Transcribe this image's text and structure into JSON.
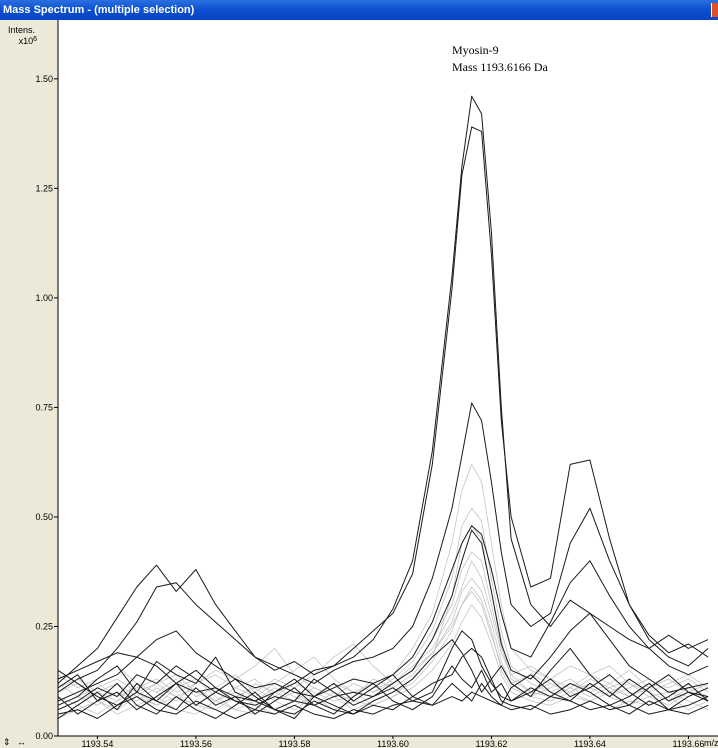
{
  "window": {
    "title": "Mass Spectrum - (multiple selection)"
  },
  "icons": {
    "close": "close-icon",
    "nav": "axis-nav-arrows-icon"
  },
  "nav_glyph": "⇕ ↔",
  "colors": {
    "titlebar": "#0a4fd0",
    "frame": "#ece9d8",
    "dark_trace": "#1a1a1a",
    "light_trace": "#c4c4c4"
  },
  "chart_data": {
    "type": "line",
    "annotation": {
      "line1": "Myosin-9",
      "line2": "Mass 1193.6166 Da"
    },
    "ylabel": "Intens.",
    "yscale_label": "x10",
    "yscale_exp": "6",
    "xunit": "m/z",
    "xlim": [
      1193.532,
      1193.666
    ],
    "ylim": [
      0,
      1.6
    ],
    "x_ticks": [
      "1193.54",
      "1193.56",
      "1193.58",
      "1193.60",
      "1193.62",
      "1193.64",
      "1193.66"
    ],
    "y_ticks": [
      "0.00",
      "0.25",
      "0.50",
      "0.75",
      "1.00",
      "1.25",
      "1.50"
    ],
    "x": [
      1193.532,
      1193.536,
      1193.54,
      1193.544,
      1193.548,
      1193.552,
      1193.556,
      1193.56,
      1193.564,
      1193.568,
      1193.572,
      1193.576,
      1193.58,
      1193.584,
      1193.588,
      1193.592,
      1193.596,
      1193.6,
      1193.604,
      1193.608,
      1193.612,
      1193.614,
      1193.616,
      1193.618,
      1193.62,
      1193.622,
      1193.624,
      1193.628,
      1193.632,
      1193.636,
      1193.64,
      1193.644,
      1193.648,
      1193.652,
      1193.656,
      1193.66,
      1193.664
    ],
    "series": [
      {
        "style": "dark",
        "values": [
          0.13,
          0.15,
          0.17,
          0.19,
          0.18,
          0.16,
          0.12,
          0.1,
          0.11,
          0.09,
          0.08,
          0.1,
          0.12,
          0.15,
          0.16,
          0.18,
          0.22,
          0.29,
          0.4,
          0.65,
          1.05,
          1.3,
          1.46,
          1.42,
          1.15,
          0.75,
          0.45,
          0.3,
          0.25,
          0.31,
          0.28,
          0.25,
          0.22,
          0.2,
          0.23,
          0.2,
          0.22
        ]
      },
      {
        "style": "dark",
        "values": [
          0.12,
          0.16,
          0.2,
          0.27,
          0.34,
          0.39,
          0.33,
          0.38,
          0.3,
          0.24,
          0.18,
          0.15,
          0.17,
          0.14,
          0.16,
          0.2,
          0.24,
          0.28,
          0.37,
          0.62,
          1.02,
          1.28,
          1.39,
          1.38,
          1.1,
          0.72,
          0.5,
          0.34,
          0.36,
          0.62,
          0.63,
          0.45,
          0.3,
          0.22,
          0.18,
          0.16,
          0.2
        ]
      },
      {
        "style": "dark",
        "values": [
          0.1,
          0.13,
          0.15,
          0.2,
          0.26,
          0.34,
          0.35,
          0.3,
          0.26,
          0.22,
          0.18,
          0.16,
          0.14,
          0.12,
          0.15,
          0.17,
          0.18,
          0.2,
          0.25,
          0.36,
          0.52,
          0.64,
          0.76,
          0.72,
          0.58,
          0.42,
          0.3,
          0.25,
          0.28,
          0.44,
          0.52,
          0.4,
          0.3,
          0.23,
          0.19,
          0.21,
          0.18
        ]
      },
      {
        "style": "dark",
        "values": [
          0.08,
          0.1,
          0.12,
          0.14,
          0.18,
          0.22,
          0.24,
          0.19,
          0.16,
          0.13,
          0.11,
          0.12,
          0.1,
          0.09,
          0.11,
          0.13,
          0.12,
          0.14,
          0.18,
          0.26,
          0.38,
          0.44,
          0.48,
          0.46,
          0.38,
          0.28,
          0.2,
          0.18,
          0.26,
          0.35,
          0.4,
          0.32,
          0.25,
          0.2,
          0.16,
          0.14,
          0.16
        ]
      },
      {
        "style": "dark",
        "values": [
          0.06,
          0.08,
          0.11,
          0.09,
          0.14,
          0.12,
          0.16,
          0.13,
          0.1,
          0.08,
          0.07,
          0.09,
          0.08,
          0.07,
          0.09,
          0.1,
          0.09,
          0.12,
          0.15,
          0.22,
          0.32,
          0.4,
          0.47,
          0.44,
          0.33,
          0.21,
          0.15,
          0.13,
          0.18,
          0.24,
          0.28,
          0.22,
          0.16,
          0.13,
          0.1,
          0.11,
          0.12
        ]
      },
      {
        "style": "dark",
        "values": [
          0.15,
          0.12,
          0.09,
          0.07,
          0.1,
          0.17,
          0.14,
          0.12,
          0.18,
          0.1,
          0.08,
          0.06,
          0.08,
          0.13,
          0.1,
          0.07,
          0.09,
          0.11,
          0.08,
          0.1,
          0.2,
          0.24,
          0.22,
          0.16,
          0.12,
          0.09,
          0.08,
          0.11,
          0.09,
          0.12,
          0.1,
          0.07,
          0.09,
          0.12,
          0.08,
          0.1,
          0.09
        ]
      },
      {
        "style": "dark",
        "values": [
          0.09,
          0.05,
          0.08,
          0.12,
          0.07,
          0.05,
          0.09,
          0.06,
          0.04,
          0.07,
          0.1,
          0.06,
          0.05,
          0.08,
          0.06,
          0.05,
          0.07,
          0.06,
          0.09,
          0.12,
          0.14,
          0.18,
          0.2,
          0.18,
          0.13,
          0.08,
          0.07,
          0.06,
          0.09,
          0.08,
          0.06,
          0.07,
          0.05,
          0.08,
          0.06,
          0.07,
          0.09
        ]
      },
      {
        "style": "dark",
        "values": [
          0.04,
          0.07,
          0.1,
          0.06,
          0.12,
          0.08,
          0.06,
          0.11,
          0.07,
          0.09,
          0.05,
          0.08,
          0.11,
          0.07,
          0.05,
          0.09,
          0.12,
          0.08,
          0.06,
          0.09,
          0.16,
          0.13,
          0.11,
          0.15,
          0.1,
          0.12,
          0.08,
          0.1,
          0.13,
          0.09,
          0.11,
          0.14,
          0.1,
          0.07,
          0.09,
          0.12,
          0.08
        ]
      },
      {
        "style": "dark",
        "values": [
          0.11,
          0.14,
          0.08,
          0.1,
          0.06,
          0.09,
          0.12,
          0.07,
          0.1,
          0.13,
          0.09,
          0.06,
          0.04,
          0.09,
          0.12,
          0.08,
          0.11,
          0.14,
          0.09,
          0.07,
          0.12,
          0.1,
          0.08,
          0.12,
          0.09,
          0.07,
          0.11,
          0.14,
          0.1,
          0.08,
          0.12,
          0.09,
          0.13,
          0.1,
          0.06,
          0.09,
          0.11
        ]
      },
      {
        "style": "dark",
        "values": [
          0.07,
          0.09,
          0.13,
          0.16,
          0.1,
          0.08,
          0.12,
          0.15,
          0.11,
          0.08,
          0.06,
          0.1,
          0.13,
          0.09,
          0.07,
          0.05,
          0.08,
          0.1,
          0.13,
          0.18,
          0.22,
          0.19,
          0.15,
          0.1,
          0.13,
          0.16,
          0.12,
          0.09,
          0.15,
          0.2,
          0.14,
          0.1,
          0.07,
          0.11,
          0.14,
          0.1,
          0.08
        ]
      },
      {
        "style": "dark",
        "values": [
          0.05,
          0.06,
          0.04,
          0.07,
          0.09,
          0.06,
          0.05,
          0.08,
          0.06,
          0.04,
          0.06,
          0.05,
          0.07,
          0.05,
          0.04,
          0.06,
          0.05,
          0.07,
          0.08,
          0.07,
          0.09,
          0.08,
          0.1,
          0.09,
          0.08,
          0.07,
          0.06,
          0.07,
          0.05,
          0.06,
          0.08,
          0.06,
          0.07,
          0.05,
          0.06,
          0.05,
          0.07
        ]
      },
      {
        "style": "light",
        "values": [
          0.08,
          0.1,
          0.12,
          0.09,
          0.11,
          0.13,
          0.1,
          0.12,
          0.14,
          0.11,
          0.09,
          0.12,
          0.15,
          0.18,
          0.13,
          0.1,
          0.12,
          0.14,
          0.2,
          0.28,
          0.44,
          0.56,
          0.62,
          0.58,
          0.44,
          0.3,
          0.2,
          0.15,
          0.13,
          0.16,
          0.14,
          0.12,
          0.15,
          0.11,
          0.13,
          0.1,
          0.12
        ]
      },
      {
        "style": "light",
        "values": [
          0.12,
          0.09,
          0.07,
          0.1,
          0.08,
          0.11,
          0.09,
          0.07,
          0.1,
          0.08,
          0.12,
          0.1,
          0.08,
          0.11,
          0.09,
          0.12,
          0.1,
          0.13,
          0.17,
          0.24,
          0.36,
          0.48,
          0.52,
          0.49,
          0.36,
          0.24,
          0.16,
          0.12,
          0.1,
          0.12,
          0.11,
          0.09,
          0.11,
          0.13,
          0.1,
          0.09,
          0.11
        ]
      },
      {
        "style": "light",
        "values": [
          0.06,
          0.08,
          0.1,
          0.12,
          0.09,
          0.07,
          0.11,
          0.13,
          0.09,
          0.06,
          0.08,
          0.11,
          0.09,
          0.07,
          0.1,
          0.08,
          0.11,
          0.12,
          0.15,
          0.22,
          0.3,
          0.38,
          0.42,
          0.4,
          0.3,
          0.2,
          0.14,
          0.1,
          0.12,
          0.1,
          0.08,
          0.1,
          0.12,
          0.09,
          0.07,
          0.1,
          0.08
        ]
      },
      {
        "style": "light",
        "values": [
          0.1,
          0.12,
          0.08,
          0.06,
          0.09,
          0.12,
          0.14,
          0.1,
          0.08,
          0.11,
          0.13,
          0.09,
          0.12,
          0.1,
          0.08,
          0.09,
          0.13,
          0.11,
          0.14,
          0.19,
          0.26,
          0.33,
          0.36,
          0.33,
          0.26,
          0.17,
          0.12,
          0.09,
          0.11,
          0.13,
          0.1,
          0.12,
          0.09,
          0.11,
          0.13,
          0.1,
          0.09
        ]
      },
      {
        "style": "light",
        "values": [
          0.04,
          0.06,
          0.08,
          0.05,
          0.07,
          0.09,
          0.06,
          0.05,
          0.08,
          0.1,
          0.07,
          0.05,
          0.07,
          0.09,
          0.06,
          0.08,
          0.07,
          0.09,
          0.11,
          0.15,
          0.21,
          0.26,
          0.3,
          0.27,
          0.21,
          0.14,
          0.1,
          0.08,
          0.07,
          0.09,
          0.08,
          0.06,
          0.08,
          0.07,
          0.09,
          0.06,
          0.08
        ]
      },
      {
        "style": "light",
        "values": [
          0.14,
          0.11,
          0.13,
          0.16,
          0.12,
          0.1,
          0.08,
          0.12,
          0.15,
          0.13,
          0.16,
          0.2,
          0.14,
          0.11,
          0.09,
          0.12,
          0.1,
          0.12,
          0.16,
          0.2,
          0.28,
          0.34,
          0.4,
          0.36,
          0.28,
          0.19,
          0.14,
          0.16,
          0.13,
          0.11,
          0.14,
          0.16,
          0.12,
          0.1,
          0.12,
          0.14,
          0.11
        ]
      },
      {
        "style": "light",
        "values": [
          0.09,
          0.07,
          0.05,
          0.08,
          0.1,
          0.07,
          0.09,
          0.11,
          0.08,
          0.06,
          0.05,
          0.08,
          0.1,
          0.07,
          0.09,
          0.06,
          0.08,
          0.1,
          0.12,
          0.17,
          0.24,
          0.3,
          0.34,
          0.31,
          0.24,
          0.15,
          0.11,
          0.09,
          0.08,
          0.1,
          0.12,
          0.09,
          0.07,
          0.09,
          0.1,
          0.08,
          0.06
        ]
      },
      {
        "style": "light",
        "values": [
          0.07,
          0.09,
          0.11,
          0.13,
          0.1,
          0.12,
          0.09,
          0.07,
          0.06,
          0.09,
          0.11,
          0.08,
          0.06,
          0.09,
          0.12,
          0.1,
          0.07,
          0.09,
          0.13,
          0.18,
          0.32,
          0.44,
          0.48,
          0.45,
          0.33,
          0.22,
          0.13,
          0.1,
          0.09,
          0.11,
          0.09,
          0.11,
          0.13,
          0.1,
          0.08,
          0.11,
          0.09
        ]
      },
      {
        "style": "light",
        "values": [
          0.11,
          0.13,
          0.1,
          0.08,
          0.12,
          0.1,
          0.13,
          0.09,
          0.11,
          0.14,
          0.1,
          0.13,
          0.11,
          0.14,
          0.18,
          0.21,
          0.16,
          0.12,
          0.15,
          0.19,
          0.25,
          0.3,
          0.33,
          0.3,
          0.23,
          0.16,
          0.12,
          0.14,
          0.12,
          0.1,
          0.13,
          0.11,
          0.09,
          0.12,
          0.11,
          0.13,
          0.1
        ]
      }
    ]
  }
}
